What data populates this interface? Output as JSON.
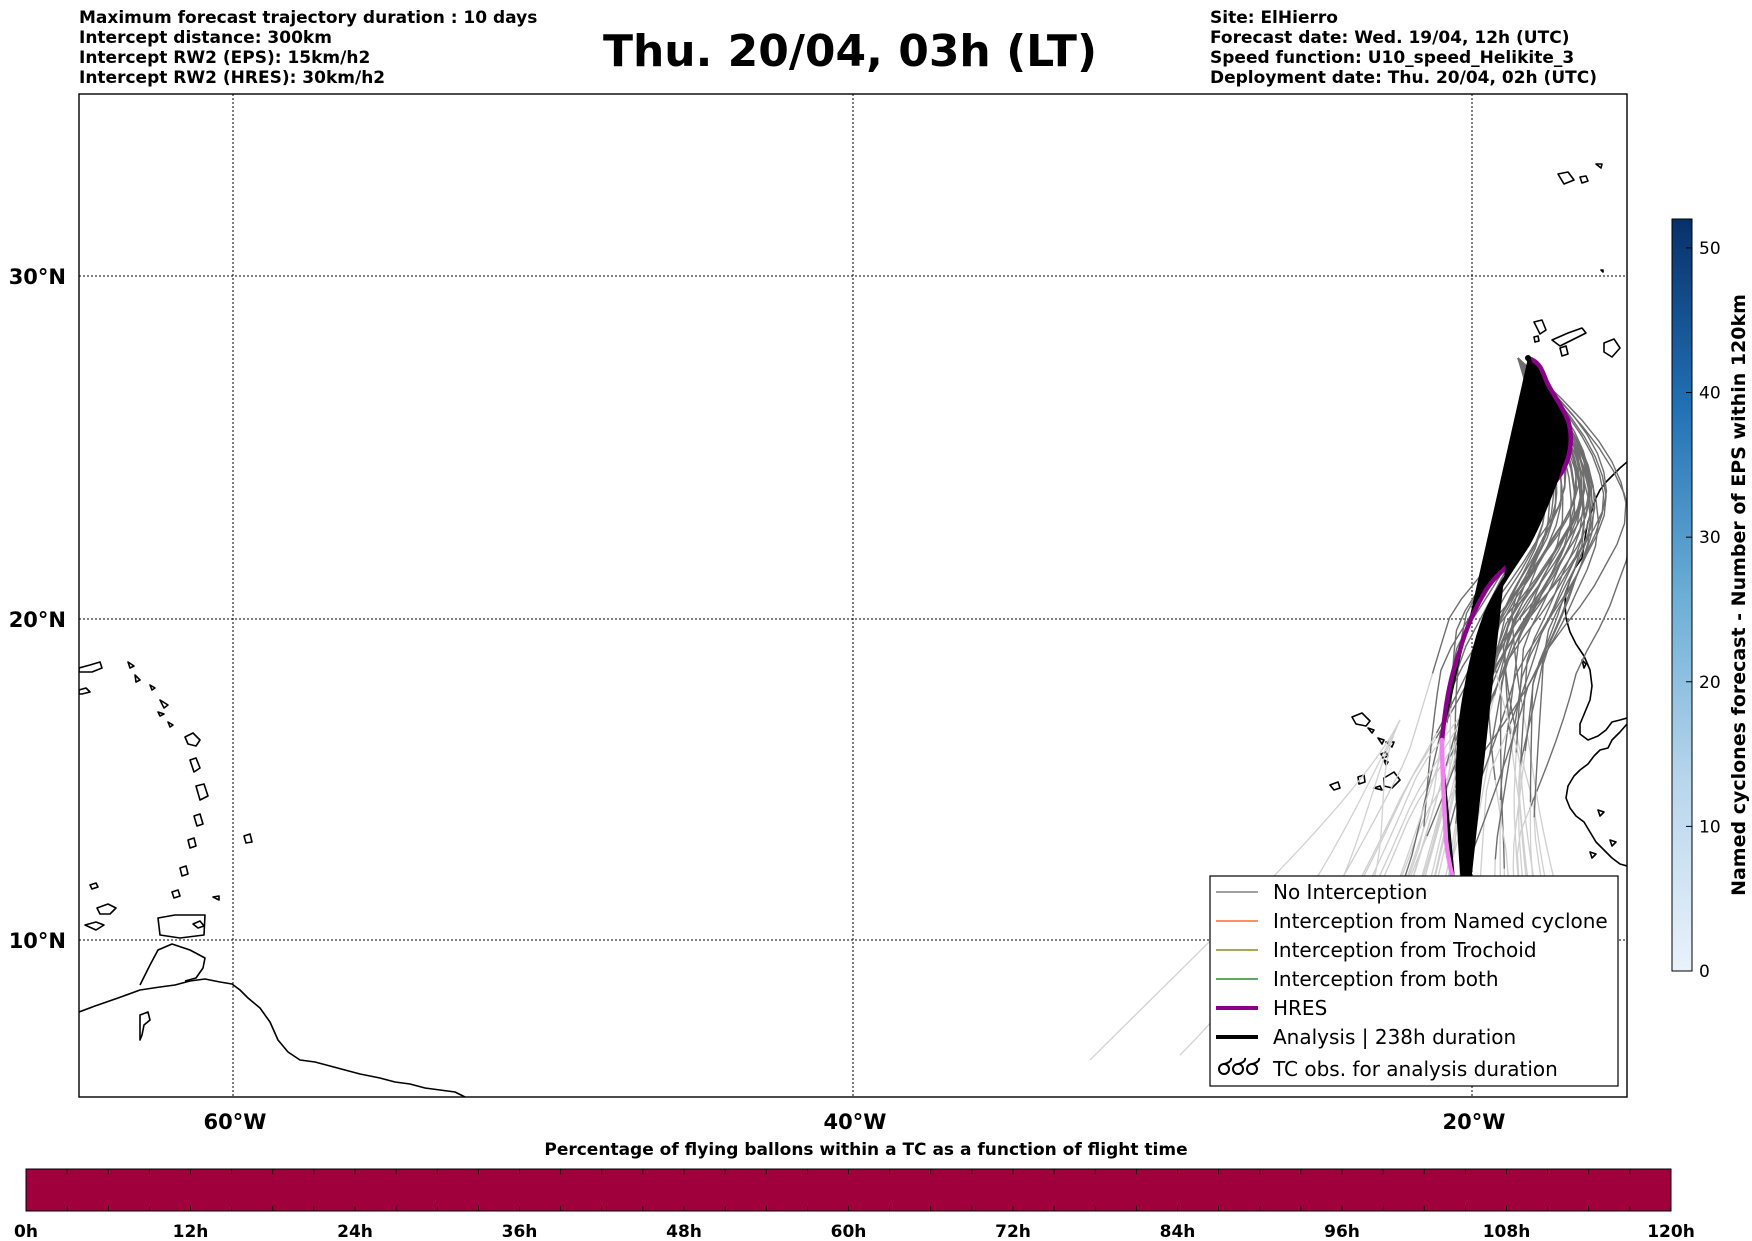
{
  "header": {
    "left_lines": [
      "Maximum forecast trajectory duration : 10 days",
      "Intercept distance: 300km",
      "Intercept RW2 (EPS):  15km/h2",
      "Intercept RW2 (HRES): 30km/h2"
    ],
    "title": "Thu. 20/04, 03h (LT)",
    "right_lines": [
      "Site: ElHierro",
      "Forecast date: Wed. 19/04, 12h (UTC)",
      "Speed function: U10_speed_Helikite_3",
      "Deployment date: Thu. 20/04, 02h (UTC)"
    ]
  },
  "map": {
    "lon_range": [
      -65,
      -15
    ],
    "lat_range": [
      5.3,
      34.8
    ],
    "lat_ticks": [
      {
        "value": 30,
        "label": "30°N"
      },
      {
        "value": 20,
        "label": "20°N"
      },
      {
        "value": 10,
        "label": "10°N"
      }
    ],
    "lon_ticks": [
      {
        "value": -60,
        "label": "60°W"
      },
      {
        "value": -40,
        "label": "40°W"
      },
      {
        "value": -20,
        "label": "20°W"
      }
    ],
    "gridlines": "dotted",
    "launch_site": {
      "lon": -18.0,
      "lat": 27.7
    }
  },
  "legend": {
    "placement": "lower-right",
    "items": [
      {
        "label": "No Interception",
        "color": "#808080",
        "style": "thin-line"
      },
      {
        "label": "Interception from Named cyclone",
        "color": "#ff6a2f",
        "style": "thin-line"
      },
      {
        "label": "Interception from Trochoid",
        "color": "#8c8c2a",
        "style": "thin-line"
      },
      {
        "label": "Interception from both",
        "color": "#2e8b2e",
        "style": "thin-line"
      },
      {
        "label": "HRES",
        "color": "#8b008b",
        "style": "thick-line"
      },
      {
        "label": "Analysis | 238h duration",
        "color": "#000000",
        "style": "thick-line"
      },
      {
        "label": "TC obs. for analysis duration",
        "color": "#000000",
        "style": "cyclone-symbols"
      }
    ]
  },
  "right_colorbar": {
    "label": "Named cyclones forecast - Number of EPS within 120km",
    "min": 0,
    "max": 52,
    "ticks": [
      "0",
      "10",
      "20",
      "30",
      "40",
      "50"
    ],
    "colormap": "Blues",
    "color_low": "#e9f2fb",
    "color_high": "#08306b"
  },
  "bottom_colorbar": {
    "title": "Percentage of flying ballons within a TC as a function of flight time",
    "ticks": [
      "0h",
      "12h",
      "24h",
      "36h",
      "48h",
      "60h",
      "72h",
      "84h",
      "96h",
      "108h",
      "120h"
    ],
    "fill_color": "#a0003c"
  }
}
